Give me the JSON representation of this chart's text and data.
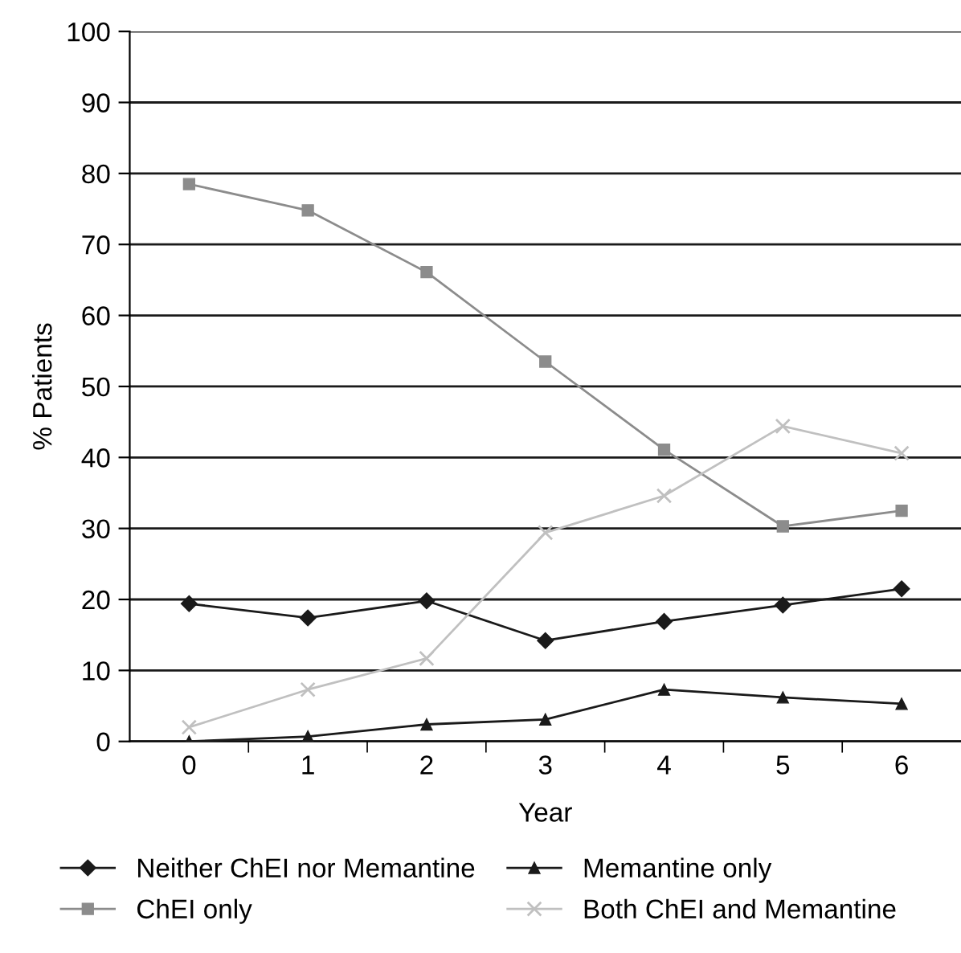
{
  "chart_data": {
    "type": "line",
    "xlabel": "Year",
    "ylabel": "% Patients",
    "categories": [
      "0",
      "1",
      "2",
      "3",
      "4",
      "5",
      "6"
    ],
    "series": [
      {
        "name": "Neither ChEI nor Memantine",
        "color": "#1a1a1a",
        "marker": "diamond",
        "values": [
          19.4,
          17.4,
          19.8,
          14.2,
          16.9,
          19.2,
          21.5
        ]
      },
      {
        "name": "ChEI only",
        "color": "#8c8c8c",
        "marker": "square",
        "values": [
          78.5,
          74.8,
          66.1,
          53.5,
          41.1,
          30.3,
          32.5
        ]
      },
      {
        "name": "Memantine only",
        "color": "#1a1a1a",
        "marker": "triangle",
        "values": [
          0,
          0.7,
          2.4,
          3.1,
          7.3,
          6.2,
          5.3
        ]
      },
      {
        "name": "Both ChEI and Memantine",
        "color": "#c0c0c0",
        "marker": "cross",
        "values": [
          2.0,
          7.3,
          11.7,
          29.4,
          34.6,
          44.4,
          40.6
        ]
      }
    ],
    "ylim": [
      0,
      100
    ],
    "yticks": [
      0,
      10,
      20,
      30,
      40,
      50,
      60,
      70,
      80,
      90,
      100
    ],
    "grid": "y",
    "legend": "bottom",
    "line_style": "solid"
  }
}
